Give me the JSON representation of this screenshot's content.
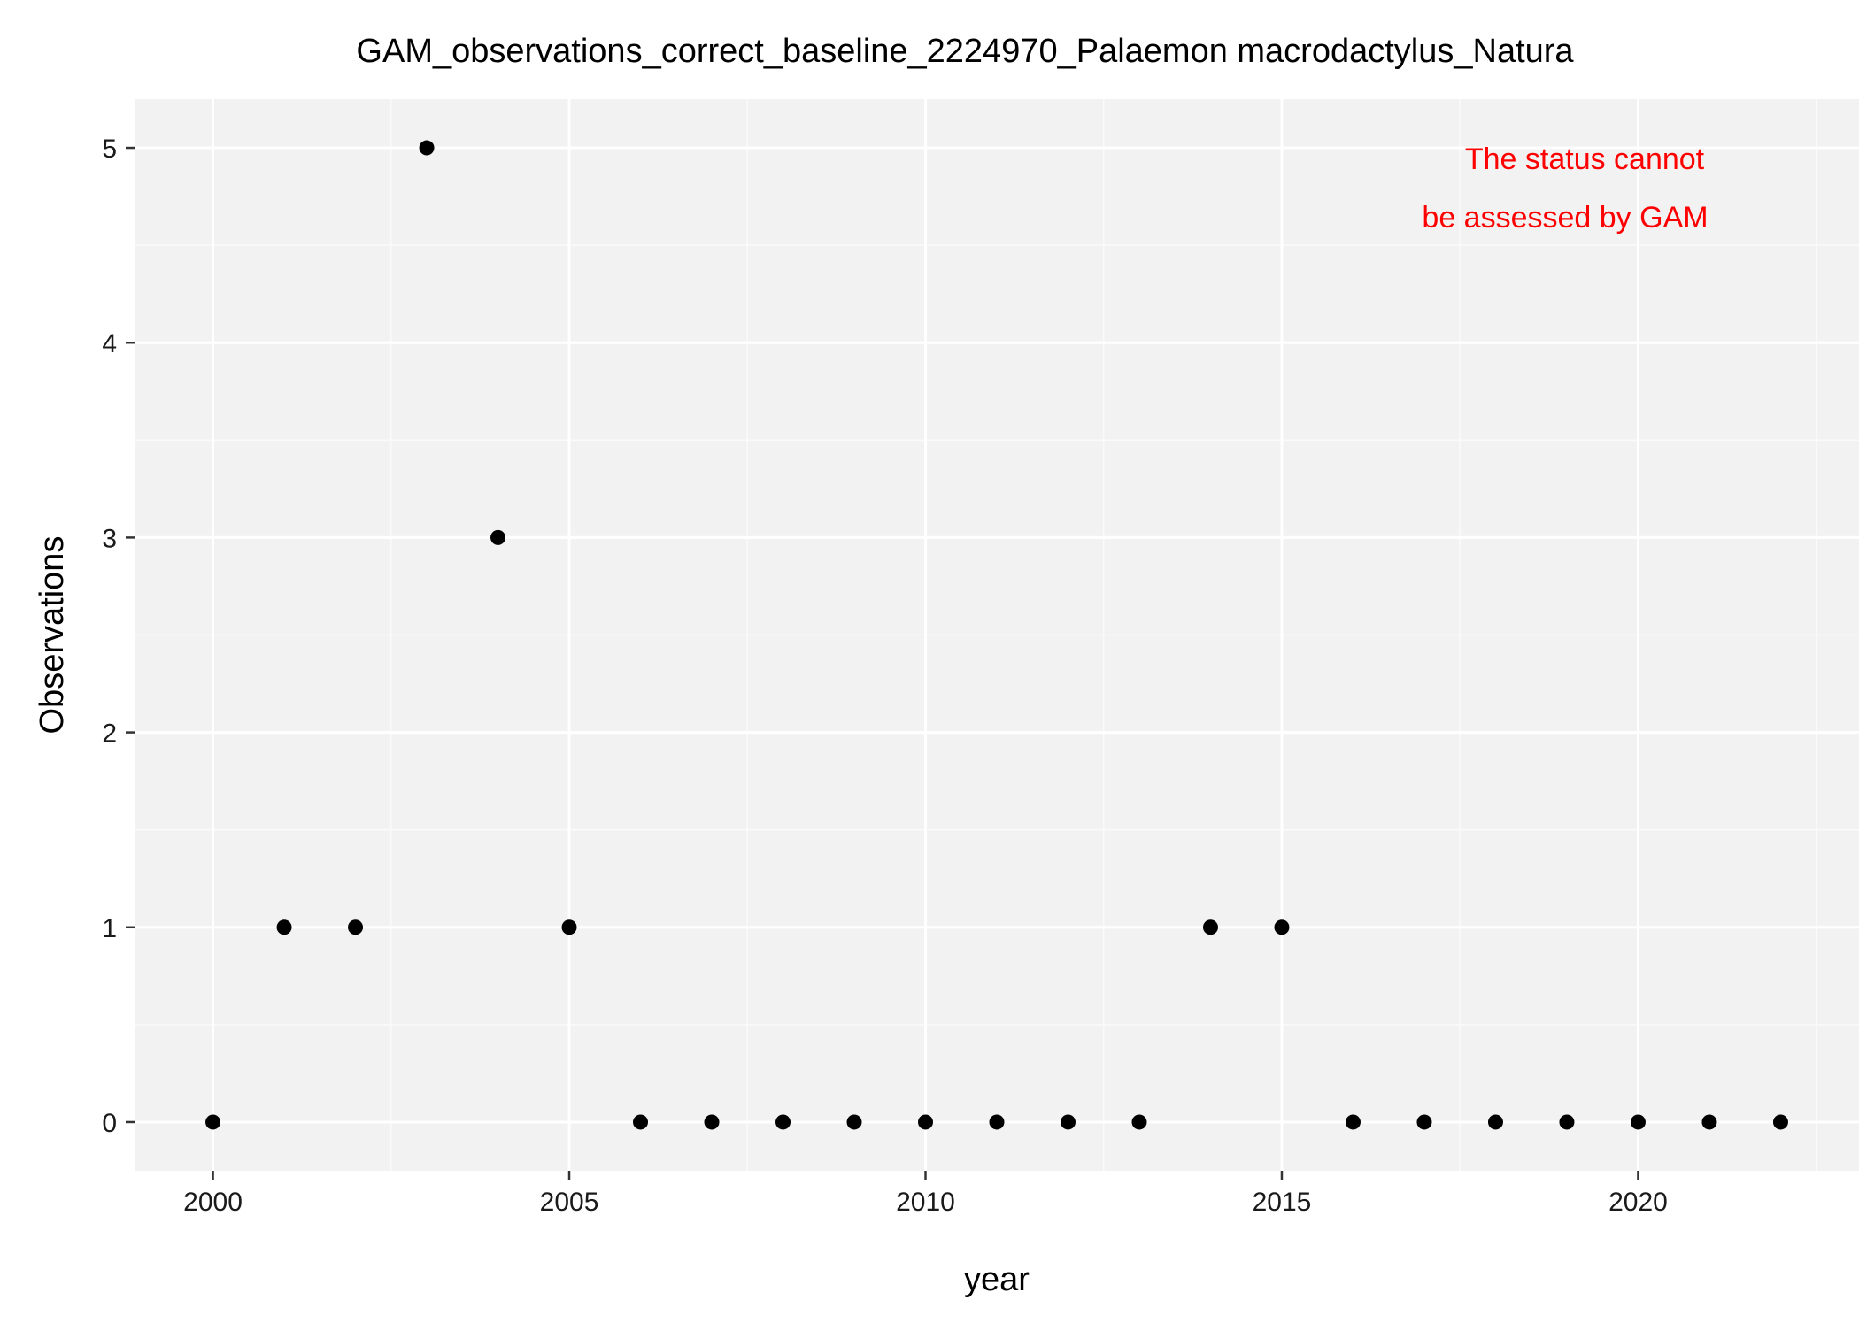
{
  "chart_data": {
    "type": "scatter",
    "title": "GAM_observations_correct_baseline_2224970_Palaemon macrodactylus_Natura",
    "xlabel": "year",
    "ylabel": "Observations",
    "xlim": [
      1998.9,
      2023.1
    ],
    "ylim": [
      -0.25,
      5.25
    ],
    "x_ticks": [
      2000,
      2005,
      2010,
      2015,
      2020
    ],
    "y_ticks": [
      0,
      1,
      2,
      3,
      4,
      5
    ],
    "x_minor_ticks": [
      2002.5,
      2007.5,
      2012.5,
      2017.5,
      2022.5
    ],
    "y_minor_ticks": [
      0.5,
      1.5,
      2.5,
      3.5,
      4.5
    ],
    "grid": true,
    "legend": "none",
    "series": [
      {
        "x": [
          2000,
          2001,
          2002,
          2003,
          2004,
          2005,
          2006,
          2007,
          2008,
          2009,
          2010,
          2011,
          2012,
          2013,
          2014,
          2015,
          2016,
          2017,
          2018,
          2019,
          2020,
          2021,
          2022
        ],
        "y": [
          0,
          1,
          1,
          5,
          3,
          1,
          0,
          0,
          0,
          0,
          0,
          0,
          0,
          0,
          1,
          1,
          0,
          0,
          0,
          0,
          0,
          0,
          0
        ]
      }
    ],
    "annotation": {
      "lines": [
        "The status cannot",
        "be assessed by GAM"
      ],
      "color": "#ff0000"
    },
    "colors": {
      "panel_background": "#f2f2f2",
      "grid_major": "#ffffff",
      "grid_minor": "#fafafa",
      "point": "#000000",
      "tick_text": "#1a1a1a",
      "axis_title": "#000000"
    }
  }
}
